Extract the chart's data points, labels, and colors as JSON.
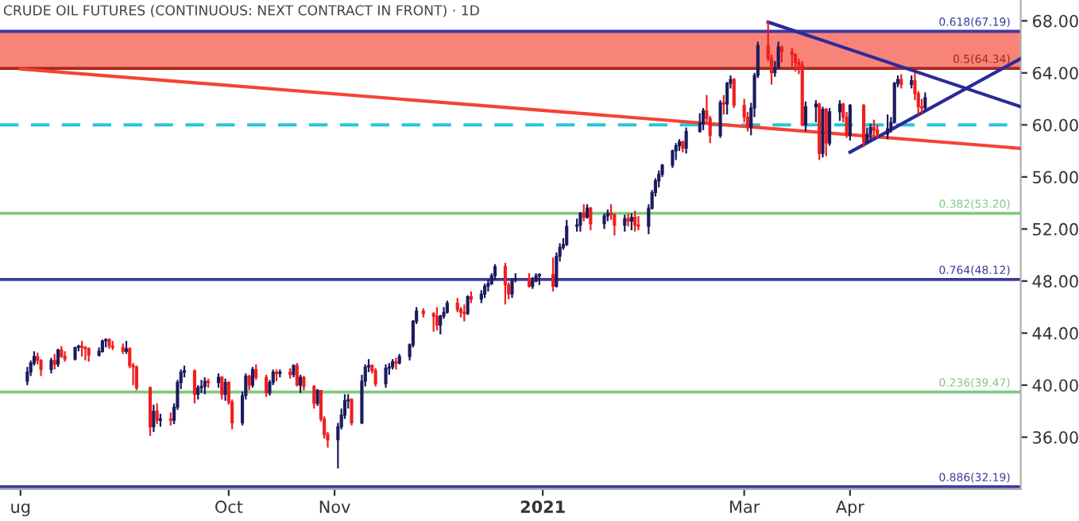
{
  "chart_data": {
    "type": "candlestick",
    "title": "CRUDE OIL FUTURES (CONTINUOUS: NEXT CONTRACT IN FRONT) · 1D",
    "xlim": [
      "2020-07-26",
      "2021-05-21"
    ],
    "xticks": [
      {
        "value": "2020-08-01",
        "label": "ug"
      },
      {
        "value": "2020-10-01",
        "label": "Oct"
      },
      {
        "value": "2020-11-01",
        "label": "Nov"
      },
      {
        "value": "2021-01-01",
        "label": "2021"
      },
      {
        "value": "2021-03-01",
        "label": "Mar"
      },
      {
        "value": "2021-04-01",
        "label": "Apr"
      }
    ],
    "ylim": [
      32.0,
      69.6
    ],
    "yticks": [
      {
        "value": 36,
        "label": "36.00"
      },
      {
        "value": 40,
        "label": "40.00"
      },
      {
        "value": 44,
        "label": "44.00"
      },
      {
        "value": 48,
        "label": "48.00"
      },
      {
        "value": 52,
        "label": "52.00"
      },
      {
        "value": 56,
        "label": "56.00"
      },
      {
        "value": 60,
        "label": "60.00"
      },
      {
        "value": 64,
        "label": "64.00"
      },
      {
        "value": 68,
        "label": "68.00"
      }
    ],
    "bands": [
      {
        "axis": "y",
        "from": 64.34,
        "to": 67.19,
        "color": "#f88379"
      }
    ],
    "ref_lines": [
      {
        "axis": "y",
        "value": 67.19,
        "label": "0.618(67.19)",
        "color": "#3b3b9e",
        "line_style": "solid"
      },
      {
        "axis": "y",
        "value": 64.34,
        "label": "0.5(64.34)",
        "color": "#a8281c",
        "line_style": "solid"
      },
      {
        "axis": "y",
        "value": 60,
        "color": "#26c6da",
        "line_style": "dashed"
      },
      {
        "axis": "y",
        "value": 53.2,
        "label": "0.382(53.20)",
        "color": "#7fc97f",
        "line_style": "solid"
      },
      {
        "axis": "y",
        "value": 48.12,
        "label": "0.764(48.12)",
        "color": "#3b3b9e",
        "line_style": "solid"
      },
      {
        "axis": "y",
        "value": 39.47,
        "label": "0.236(39.47)",
        "color": "#7fc97f",
        "line_style": "solid"
      },
      {
        "axis": "y",
        "value": 32.19,
        "label": "0.886(32.19)",
        "color": "#3b3b9e",
        "line_style": "solid"
      }
    ],
    "series": [
      {
        "type": "line",
        "color": "#f44336",
        "x": [
          "2020-08-01",
          "2021-05-21"
        ],
        "values": [
          64.3,
          58.2
        ]
      },
      {
        "type": "line",
        "color": "#2a2a9a",
        "x": [
          "2021-03-08",
          "2021-05-21"
        ],
        "values": [
          67.9,
          61.4
        ]
      },
      {
        "type": "line",
        "color": "#2a2a9a",
        "x": [
          "2021-04-01",
          "2021-05-21"
        ],
        "values": [
          57.9,
          65.1
        ]
      }
    ],
    "x": [
      "2020-08-03",
      "2020-08-04",
      "2020-08-05",
      "2020-08-06",
      "2020-08-07",
      "2020-08-10",
      "2020-08-11",
      "2020-08-12",
      "2020-08-13",
      "2020-08-14",
      "2020-08-17",
      "2020-08-18",
      "2020-08-19",
      "2020-08-20",
      "2020-08-21",
      "2020-08-24",
      "2020-08-25",
      "2020-08-26",
      "2020-08-27",
      "2020-08-28",
      "2020-08-31",
      "2020-09-01",
      "2020-09-02",
      "2020-09-03",
      "2020-09-04",
      "2020-09-08",
      "2020-09-09",
      "2020-09-10",
      "2020-09-11",
      "2020-09-14",
      "2020-09-15",
      "2020-09-16",
      "2020-09-17",
      "2020-09-18",
      "2020-09-21",
      "2020-09-22",
      "2020-09-23",
      "2020-09-24",
      "2020-09-25",
      "2020-09-28",
      "2020-09-29",
      "2020-09-30",
      "2020-10-01",
      "2020-10-02",
      "2020-10-05",
      "2020-10-06",
      "2020-10-07",
      "2020-10-08",
      "2020-10-09",
      "2020-10-12",
      "2020-10-13",
      "2020-10-14",
      "2020-10-15",
      "2020-10-16",
      "2020-10-19",
      "2020-10-20",
      "2020-10-21",
      "2020-10-22",
      "2020-10-23",
      "2020-10-26",
      "2020-10-27",
      "2020-10-28",
      "2020-10-29",
      "2020-10-30",
      "2020-11-02",
      "2020-11-03",
      "2020-11-04",
      "2020-11-05",
      "2020-11-06",
      "2020-11-09",
      "2020-11-10",
      "2020-11-11",
      "2020-11-12",
      "2020-11-13",
      "2020-11-16",
      "2020-11-17",
      "2020-11-18",
      "2020-11-19",
      "2020-11-20",
      "2020-11-23",
      "2020-11-24",
      "2020-11-25",
      "2020-11-27",
      "2020-11-30",
      "2020-12-01",
      "2020-12-02",
      "2020-12-03",
      "2020-12-04",
      "2020-12-07",
      "2020-12-08",
      "2020-12-09",
      "2020-12-10",
      "2020-12-11",
      "2020-12-14",
      "2020-12-15",
      "2020-12-16",
      "2020-12-17",
      "2020-12-18",
      "2020-12-21",
      "2020-12-22",
      "2020-12-23",
      "2020-12-24",
      "2020-12-28",
      "2020-12-29",
      "2020-12-30",
      "2020-12-31",
      "2021-01-04",
      "2021-01-05",
      "2021-01-06",
      "2021-01-07",
      "2021-01-08",
      "2021-01-11",
      "2021-01-12",
      "2021-01-13",
      "2021-01-14",
      "2021-01-15",
      "2021-01-19",
      "2021-01-20",
      "2021-01-21",
      "2021-01-22",
      "2021-01-25",
      "2021-01-26",
      "2021-01-27",
      "2021-01-28",
      "2021-01-29",
      "2021-02-01",
      "2021-02-02",
      "2021-02-03",
      "2021-02-04",
      "2021-02-05",
      "2021-02-08",
      "2021-02-09",
      "2021-02-10",
      "2021-02-11",
      "2021-02-12",
      "2021-02-16",
      "2021-02-17",
      "2021-02-18",
      "2021-02-19",
      "2021-02-22",
      "2021-02-23",
      "2021-02-24",
      "2021-02-25",
      "2021-02-26",
      "2021-03-01",
      "2021-03-02",
      "2021-03-03",
      "2021-03-04",
      "2021-03-05",
      "2021-03-08",
      "2021-03-09",
      "2021-03-10",
      "2021-03-11",
      "2021-03-12",
      "2021-03-15",
      "2021-03-16",
      "2021-03-17",
      "2021-03-18",
      "2021-03-19",
      "2021-03-22",
      "2021-03-23",
      "2021-03-24",
      "2021-03-25",
      "2021-03-26",
      "2021-03-29",
      "2021-03-30",
      "2021-03-31",
      "2021-04-01",
      "2021-04-05",
      "2021-04-06",
      "2021-04-07",
      "2021-04-08",
      "2021-04-09",
      "2021-04-12",
      "2021-04-13",
      "2021-04-14",
      "2021-04-15",
      "2021-04-16",
      "2021-04-19",
      "2021-04-20",
      "2021-04-21",
      "2021-04-22",
      "2021-04-23"
    ],
    "ohlc": [
      [
        40.3,
        41.4,
        40.0,
        41.0
      ],
      [
        41.0,
        41.9,
        40.7,
        41.7
      ],
      [
        41.7,
        42.6,
        41.5,
        42.2
      ],
      [
        42.2,
        42.5,
        41.6,
        41.9
      ],
      [
        41.9,
        42.0,
        40.7,
        41.2
      ],
      [
        41.2,
        42.1,
        40.9,
        41.9
      ],
      [
        41.9,
        42.4,
        41.2,
        41.6
      ],
      [
        41.6,
        42.8,
        41.4,
        42.7
      ],
      [
        42.7,
        43.0,
        42.1,
        42.2
      ],
      [
        42.2,
        42.6,
        41.8,
        42.0
      ],
      [
        42.0,
        42.9,
        41.9,
        42.9
      ],
      [
        42.9,
        43.1,
        42.6,
        43.0
      ],
      [
        43.0,
        43.4,
        42.2,
        42.9
      ],
      [
        42.9,
        43.0,
        41.9,
        42.8
      ],
      [
        42.8,
        42.9,
        41.8,
        42.3
      ],
      [
        42.3,
        42.9,
        42.2,
        42.6
      ],
      [
        42.6,
        43.5,
        42.5,
        43.4
      ],
      [
        43.4,
        43.6,
        42.9,
        43.5
      ],
      [
        43.5,
        43.6,
        42.8,
        43.0
      ],
      [
        43.0,
        43.4,
        42.7,
        42.9
      ],
      [
        42.9,
        43.2,
        42.4,
        42.6
      ],
      [
        42.6,
        43.4,
        42.4,
        42.8
      ],
      [
        42.8,
        42.9,
        41.3,
        41.5
      ],
      [
        41.5,
        41.7,
        40.0,
        41.4
      ],
      [
        41.4,
        41.5,
        39.6,
        39.8
      ],
      [
        39.8,
        39.9,
        36.1,
        36.8
      ],
      [
        36.8,
        38.5,
        36.4,
        38.0
      ],
      [
        38.0,
        38.6,
        37.0,
        37.3
      ],
      [
        37.3,
        37.8,
        36.8,
        37.4
      ],
      [
        37.4,
        37.9,
        36.9,
        37.3
      ],
      [
        37.3,
        38.6,
        37.0,
        38.3
      ],
      [
        38.3,
        40.4,
        38.1,
        40.2
      ],
      [
        40.2,
        41.2,
        39.7,
        41.0
      ],
      [
        41.0,
        41.5,
        40.6,
        41.1
      ],
      [
        41.1,
        41.2,
        38.6,
        39.3
      ],
      [
        39.3,
        40.0,
        38.9,
        39.8
      ],
      [
        39.8,
        40.4,
        39.4,
        39.9
      ],
      [
        39.9,
        40.6,
        39.3,
        40.3
      ],
      [
        40.3,
        40.5,
        39.8,
        40.2
      ],
      [
        40.2,
        40.9,
        39.8,
        40.6
      ],
      [
        40.6,
        40.7,
        38.9,
        39.3
      ],
      [
        39.3,
        40.5,
        38.8,
        40.2
      ],
      [
        40.2,
        40.3,
        38.5,
        38.7
      ],
      [
        38.7,
        38.9,
        36.6,
        37.1
      ],
      [
        37.1,
        39.5,
        36.9,
        39.2
      ],
      [
        39.2,
        40.9,
        38.9,
        40.7
      ],
      [
        40.7,
        40.8,
        39.6,
        40.0
      ],
      [
        40.0,
        41.4,
        39.8,
        41.2
      ],
      [
        41.2,
        41.6,
        40.4,
        40.6
      ],
      [
        40.6,
        40.8,
        39.1,
        39.4
      ],
      [
        39.4,
        40.4,
        39.2,
        40.2
      ],
      [
        40.2,
        41.2,
        40.0,
        41.0
      ],
      [
        41.0,
        41.2,
        40.3,
        40.9
      ],
      [
        40.9,
        41.2,
        40.6,
        41.0
      ],
      [
        41.0,
        41.3,
        40.5,
        40.8
      ],
      [
        40.8,
        41.6,
        40.6,
        41.5
      ],
      [
        41.5,
        41.7,
        39.9,
        40.0
      ],
      [
        40.0,
        40.8,
        39.4,
        40.6
      ],
      [
        40.6,
        40.7,
        39.6,
        39.9
      ],
      [
        39.9,
        40.0,
        38.2,
        38.6
      ],
      [
        38.6,
        39.7,
        38.4,
        39.6
      ],
      [
        39.6,
        39.6,
        37.2,
        37.4
      ],
      [
        37.4,
        37.6,
        35.9,
        36.2
      ],
      [
        36.2,
        36.4,
        35.2,
        35.8
      ],
      [
        35.8,
        37.1,
        33.6,
        36.8
      ],
      [
        36.8,
        38.2,
        36.6,
        37.7
      ],
      [
        37.7,
        39.3,
        37.4,
        38.8
      ],
      [
        38.8,
        39.3,
        38.2,
        38.9
      ],
      [
        38.9,
        39.0,
        36.9,
        37.1
      ],
      [
        37.1,
        40.8,
        37.0,
        40.3
      ],
      [
        40.3,
        41.6,
        39.9,
        41.4
      ],
      [
        41.4,
        42.0,
        41.0,
        41.5
      ],
      [
        41.5,
        41.6,
        40.9,
        41.1
      ],
      [
        41.1,
        41.3,
        39.9,
        40.1
      ],
      [
        40.1,
        41.6,
        39.8,
        41.3
      ],
      [
        41.3,
        41.7,
        40.8,
        41.4
      ],
      [
        41.4,
        42.0,
        41.2,
        41.8
      ],
      [
        41.8,
        42.1,
        41.2,
        41.7
      ],
      [
        41.7,
        42.4,
        41.6,
        42.2
      ],
      [
        42.2,
        43.2,
        41.9,
        43.1
      ],
      [
        43.1,
        45.0,
        42.9,
        44.9
      ],
      [
        44.9,
        46.0,
        44.7,
        45.7
      ],
      [
        45.7,
        45.9,
        45.2,
        45.5
      ],
      [
        45.5,
        45.6,
        44.1,
        45.3
      ],
      [
        45.3,
        46.0,
        44.2,
        44.6
      ],
      [
        44.6,
        45.4,
        43.9,
        45.3
      ],
      [
        45.3,
        46.0,
        45.1,
        45.6
      ],
      [
        45.6,
        46.5,
        45.5,
        46.3
      ],
      [
        46.3,
        46.7,
        45.6,
        45.8
      ],
      [
        45.8,
        46.0,
        45.2,
        45.6
      ],
      [
        45.6,
        46.2,
        44.9,
        45.5
      ],
      [
        45.5,
        46.9,
        45.4,
        46.8
      ],
      [
        46.8,
        47.2,
        46.3,
        46.6
      ],
      [
        46.6,
        47.3,
        46.3,
        47.0
      ],
      [
        47.0,
        47.8,
        46.7,
        47.6
      ],
      [
        47.6,
        48.1,
        47.2,
        47.8
      ],
      [
        47.8,
        48.6,
        47.7,
        48.4
      ],
      [
        48.4,
        49.3,
        48.1,
        49.1
      ],
      [
        49.1,
        49.4,
        46.2,
        47.7
      ],
      [
        47.7,
        47.9,
        46.6,
        47.0
      ],
      [
        47.0,
        48.2,
        46.7,
        48.1
      ],
      [
        48.1,
        48.6,
        47.9,
        48.2
      ],
      [
        48.2,
        48.6,
        47.5,
        47.6
      ],
      [
        47.6,
        48.3,
        47.4,
        48.0
      ],
      [
        48.0,
        48.6,
        47.9,
        48.4
      ],
      [
        48.4,
        48.6,
        47.7,
        48.5
      ],
      [
        48.5,
        49.8,
        47.2,
        47.6
      ],
      [
        47.6,
        50.2,
        47.5,
        49.9
      ],
      [
        49.9,
        50.9,
        49.5,
        50.6
      ],
      [
        50.6,
        51.3,
        50.4,
        50.8
      ],
      [
        50.8,
        52.7,
        50.7,
        52.2
      ],
      [
        52.2,
        52.8,
        51.8,
        52.3
      ],
      [
        52.3,
        53.3,
        51.8,
        53.2
      ],
      [
        53.2,
        53.9,
        52.6,
        52.9
      ],
      [
        52.9,
        53.9,
        52.8,
        53.6
      ],
      [
        53.6,
        53.7,
        51.9,
        52.4
      ],
      [
        52.4,
        53.2,
        52.0,
        53.0
      ],
      [
        53.0,
        53.5,
        52.6,
        53.2
      ],
      [
        53.2,
        53.9,
        52.7,
        53.1
      ],
      [
        53.1,
        53.2,
        51.5,
        52.3
      ],
      [
        52.3,
        53.1,
        51.8,
        52.8
      ],
      [
        52.8,
        53.2,
        52.2,
        52.6
      ],
      [
        52.6,
        53.2,
        51.9,
        52.9
      ],
      [
        52.9,
        53.4,
        51.8,
        52.3
      ],
      [
        52.3,
        53.0,
        51.9,
        52.2
      ],
      [
        52.2,
        53.9,
        51.6,
        53.6
      ],
      [
        53.6,
        55.0,
        53.5,
        54.8
      ],
      [
        54.8,
        55.9,
        54.5,
        55.7
      ],
      [
        55.7,
        56.5,
        55.2,
        56.2
      ],
      [
        56.2,
        57.0,
        56.0,
        56.9
      ],
      [
        56.9,
        58.1,
        56.7,
        58.0
      ],
      [
        58.0,
        58.6,
        57.3,
        58.4
      ],
      [
        58.4,
        58.9,
        58.0,
        58.7
      ],
      [
        58.7,
        58.8,
        57.9,
        58.2
      ],
      [
        58.2,
        59.8,
        57.8,
        59.5
      ],
      [
        59.5,
        60.9,
        59.4,
        60.1
      ],
      [
        60.1,
        61.3,
        59.6,
        61.1
      ],
      [
        61.1,
        62.3,
        60.2,
        60.5
      ],
      [
        60.5,
        60.7,
        58.6,
        59.2
      ],
      [
        59.2,
        61.9,
        59.0,
        61.7
      ],
      [
        61.7,
        62.3,
        60.8,
        61.6
      ],
      [
        61.6,
        63.3,
        60.8,
        63.2
      ],
      [
        63.2,
        63.8,
        62.8,
        63.5
      ],
      [
        63.5,
        63.6,
        61.3,
        61.5
      ],
      [
        61.5,
        62.0,
        60.2,
        60.6
      ],
      [
        60.6,
        61.0,
        59.5,
        59.8
      ],
      [
        59.8,
        61.7,
        59.2,
        61.3
      ],
      [
        61.3,
        64.0,
        60.6,
        63.8
      ],
      [
        63.8,
        66.4,
        63.6,
        66.1
      ],
      [
        66.1,
        68.0,
        64.9,
        65.1
      ],
      [
        65.1,
        65.4,
        63.1,
        64.0
      ],
      [
        64.0,
        64.9,
        63.7,
        64.4
      ],
      [
        64.4,
        66.4,
        64.3,
        66.0
      ],
      [
        66.0,
        66.1,
        64.8,
        65.6
      ],
      [
        65.6,
        65.9,
        64.5,
        65.4
      ],
      [
        65.4,
        65.5,
        64.1,
        64.8
      ],
      [
        64.8,
        65.1,
        63.9,
        64.6
      ],
      [
        64.6,
        64.9,
        59.9,
        60.0
      ],
      [
        60.0,
        61.8,
        59.5,
        61.4
      ],
      [
        61.4,
        61.9,
        60.2,
        61.6
      ],
      [
        61.6,
        61.7,
        57.3,
        57.8
      ],
      [
        57.8,
        61.4,
        57.5,
        61.2
      ],
      [
        61.2,
        61.3,
        57.6,
        58.6
      ],
      [
        58.6,
        61.3,
        58.4,
        61.0
      ],
      [
        61.0,
        61.9,
        60.3,
        61.6
      ],
      [
        61.6,
        61.7,
        60.2,
        60.6
      ],
      [
        60.6,
        61.0,
        59.0,
        59.2
      ],
      [
        59.2,
        61.6,
        58.8,
        61.5
      ],
      [
        61.5,
        61.6,
        58.3,
        58.7
      ],
      [
        58.7,
        59.8,
        58.6,
        59.3
      ],
      [
        59.3,
        60.1,
        58.8,
        59.8
      ],
      [
        59.8,
        60.4,
        59.2,
        59.6
      ],
      [
        59.6,
        60.0,
        59.0,
        59.3
      ],
      [
        59.3,
        60.8,
        58.9,
        59.7
      ],
      [
        59.7,
        60.6,
        59.4,
        60.2
      ],
      [
        60.2,
        63.3,
        60.1,
        63.2
      ],
      [
        63.2,
        63.8,
        62.9,
        63.5
      ],
      [
        63.5,
        63.9,
        62.8,
        63.1
      ],
      [
        63.1,
        63.8,
        62.8,
        63.4
      ],
      [
        63.4,
        64.0,
        61.9,
        62.4
      ],
      [
        62.4,
        62.6,
        60.8,
        61.4
      ],
      [
        61.4,
        62.0,
        60.9,
        61.3
      ],
      [
        61.3,
        62.5,
        61.1,
        62.1
      ]
    ],
    "colors": [
      "#1b1b5e",
      "#1b1b5e",
      "#1b1b5e",
      "#f01e1e",
      "#f01e1e",
      "#1b1b5e",
      "#f01e1e",
      "#1b1b5e",
      "#f01e1e",
      "#f01e1e",
      "#1b1b5e",
      "#1b1b5e",
      "#f01e1e",
      "#f01e1e",
      "#f01e1e",
      "#1b1b5e",
      "#1b1b5e",
      "#1b1b5e",
      "#f01e1e",
      "#f01e1e",
      "#f01e1e",
      "#1b1b5e",
      "#f01e1e",
      "#f01e1e",
      "#f01e1e",
      "#f01e1e",
      "#1b1b5e",
      "#f01e1e",
      "#1b1b5e",
      "#f01e1e",
      "#1b1b5e",
      "#1b1b5e",
      "#1b1b5e",
      "#1b1b5e",
      "#f01e1e",
      "#1b1b5e",
      "#1b1b5e",
      "#1b1b5e",
      "#f01e1e",
      "#1b1b5e",
      "#f01e1e",
      "#1b1b5e",
      "#f01e1e",
      "#f01e1e",
      "#1b1b5e",
      "#1b1b5e",
      "#f01e1e",
      "#1b1b5e",
      "#f01e1e",
      "#f01e1e",
      "#1b1b5e",
      "#1b1b5e",
      "#f01e1e",
      "#1b1b5e",
      "#f01e1e",
      "#1b1b5e",
      "#f01e1e",
      "#1b1b5e",
      "#f01e1e",
      "#f01e1e",
      "#1b1b5e",
      "#f01e1e",
      "#f01e1e",
      "#f01e1e",
      "#1b1b5e",
      "#1b1b5e",
      "#1b1b5e",
      "#1b1b5e",
      "#f01e1e",
      "#1b1b5e",
      "#1b1b5e",
      "#1b1b5e",
      "#f01e1e",
      "#f01e1e",
      "#1b1b5e",
      "#1b1b5e",
      "#1b1b5e",
      "#f01e1e",
      "#1b1b5e",
      "#1b1b5e",
      "#1b1b5e",
      "#1b1b5e",
      "#f01e1e",
      "#f01e1e",
      "#f01e1e",
      "#1b1b5e",
      "#1b1b5e",
      "#1b1b5e",
      "#f01e1e",
      "#f01e1e",
      "#f01e1e",
      "#1b1b5e",
      "#f01e1e",
      "#1b1b5e",
      "#1b1b5e",
      "#1b1b5e",
      "#1b1b5e",
      "#1b1b5e",
      "#f01e1e",
      "#f01e1e",
      "#1b1b5e",
      "#1b1b5e",
      "#f01e1e",
      "#1b1b5e",
      "#1b1b5e",
      "#1b1b5e",
      "#f01e1e",
      "#1b1b5e",
      "#1b1b5e",
      "#1b1b5e",
      "#1b1b5e",
      "#1b1b5e",
      "#1b1b5e",
      "#f01e1e",
      "#1b1b5e",
      "#f01e1e",
      "#1b1b5e",
      "#1b1b5e",
      "#f01e1e",
      "#f01e1e",
      "#1b1b5e",
      "#f01e1e",
      "#1b1b5e",
      "#f01e1e",
      "#f01e1e",
      "#1b1b5e",
      "#1b1b5e",
      "#1b1b5e",
      "#1b1b5e",
      "#1b1b5e",
      "#1b1b5e",
      "#1b1b5e",
      "#1b1b5e",
      "#f01e1e",
      "#1b1b5e",
      "#1b1b5e",
      "#1b1b5e",
      "#f01e1e",
      "#f01e1e",
      "#1b1b5e",
      "#f01e1e",
      "#1b1b5e",
      "#1b1b5e",
      "#f01e1e",
      "#f01e1e",
      "#f01e1e",
      "#1b1b5e",
      "#1b1b5e",
      "#1b1b5e",
      "#f01e1e",
      "#f01e1e",
      "#1b1b5e",
      "#1b1b5e",
      "#f01e1e",
      "#f01e1e",
      "#f01e1e",
      "#f01e1e",
      "#f01e1e",
      "#1b1b5e",
      "#1b1b5e",
      "#f01e1e",
      "#1b1b5e",
      "#f01e1e",
      "#1b1b5e",
      "#1b1b5e",
      "#f01e1e",
      "#f01e1e",
      "#1b1b5e",
      "#f01e1e",
      "#1b1b5e",
      "#1b1b5e",
      "#f01e1e",
      "#f01e1e",
      "#1b1b5e",
      "#1b1b5e",
      "#1b1b5e",
      "#1b1b5e",
      "#f01e1e",
      "#1b1b5e",
      "#f01e1e",
      "#f01e1e",
      "#f01e1e",
      "#1b1b5e"
    ]
  }
}
